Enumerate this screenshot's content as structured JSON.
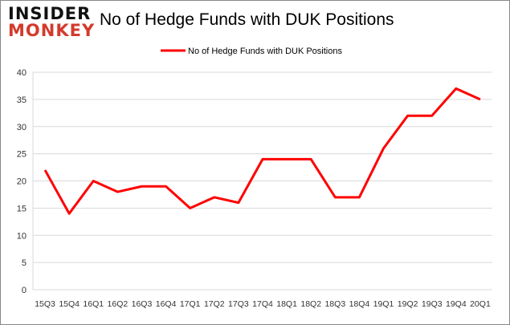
{
  "logo": {
    "line1": "INSIDER",
    "line2": "MONKEY"
  },
  "chart_data": {
    "type": "line",
    "title": "No of Hedge Funds with DUK Positions",
    "legend": {
      "entries": [
        "No of Hedge Funds with DUK Positions"
      ],
      "placement": "top-center"
    },
    "categories": [
      "15Q3",
      "15Q4",
      "16Q1",
      "16Q2",
      "16Q3",
      "16Q4",
      "17Q1",
      "17Q2",
      "17Q3",
      "17Q4",
      "18Q1",
      "18Q2",
      "18Q3",
      "18Q4",
      "19Q1",
      "19Q2",
      "19Q3",
      "19Q4",
      "20Q1"
    ],
    "series": [
      {
        "name": "No of Hedge Funds with DUK Positions",
        "color": "#ff0000",
        "values": [
          22,
          14,
          20,
          18,
          19,
          19,
          15,
          17,
          16,
          24,
          24,
          24,
          17,
          17,
          26,
          32,
          32,
          37,
          35
        ]
      }
    ],
    "yticks": [
      0,
      5,
      10,
      15,
      20,
      25,
      30,
      35,
      40
    ],
    "ylim": [
      0,
      40
    ],
    "xlabel": "",
    "ylabel": "",
    "grid": true
  }
}
